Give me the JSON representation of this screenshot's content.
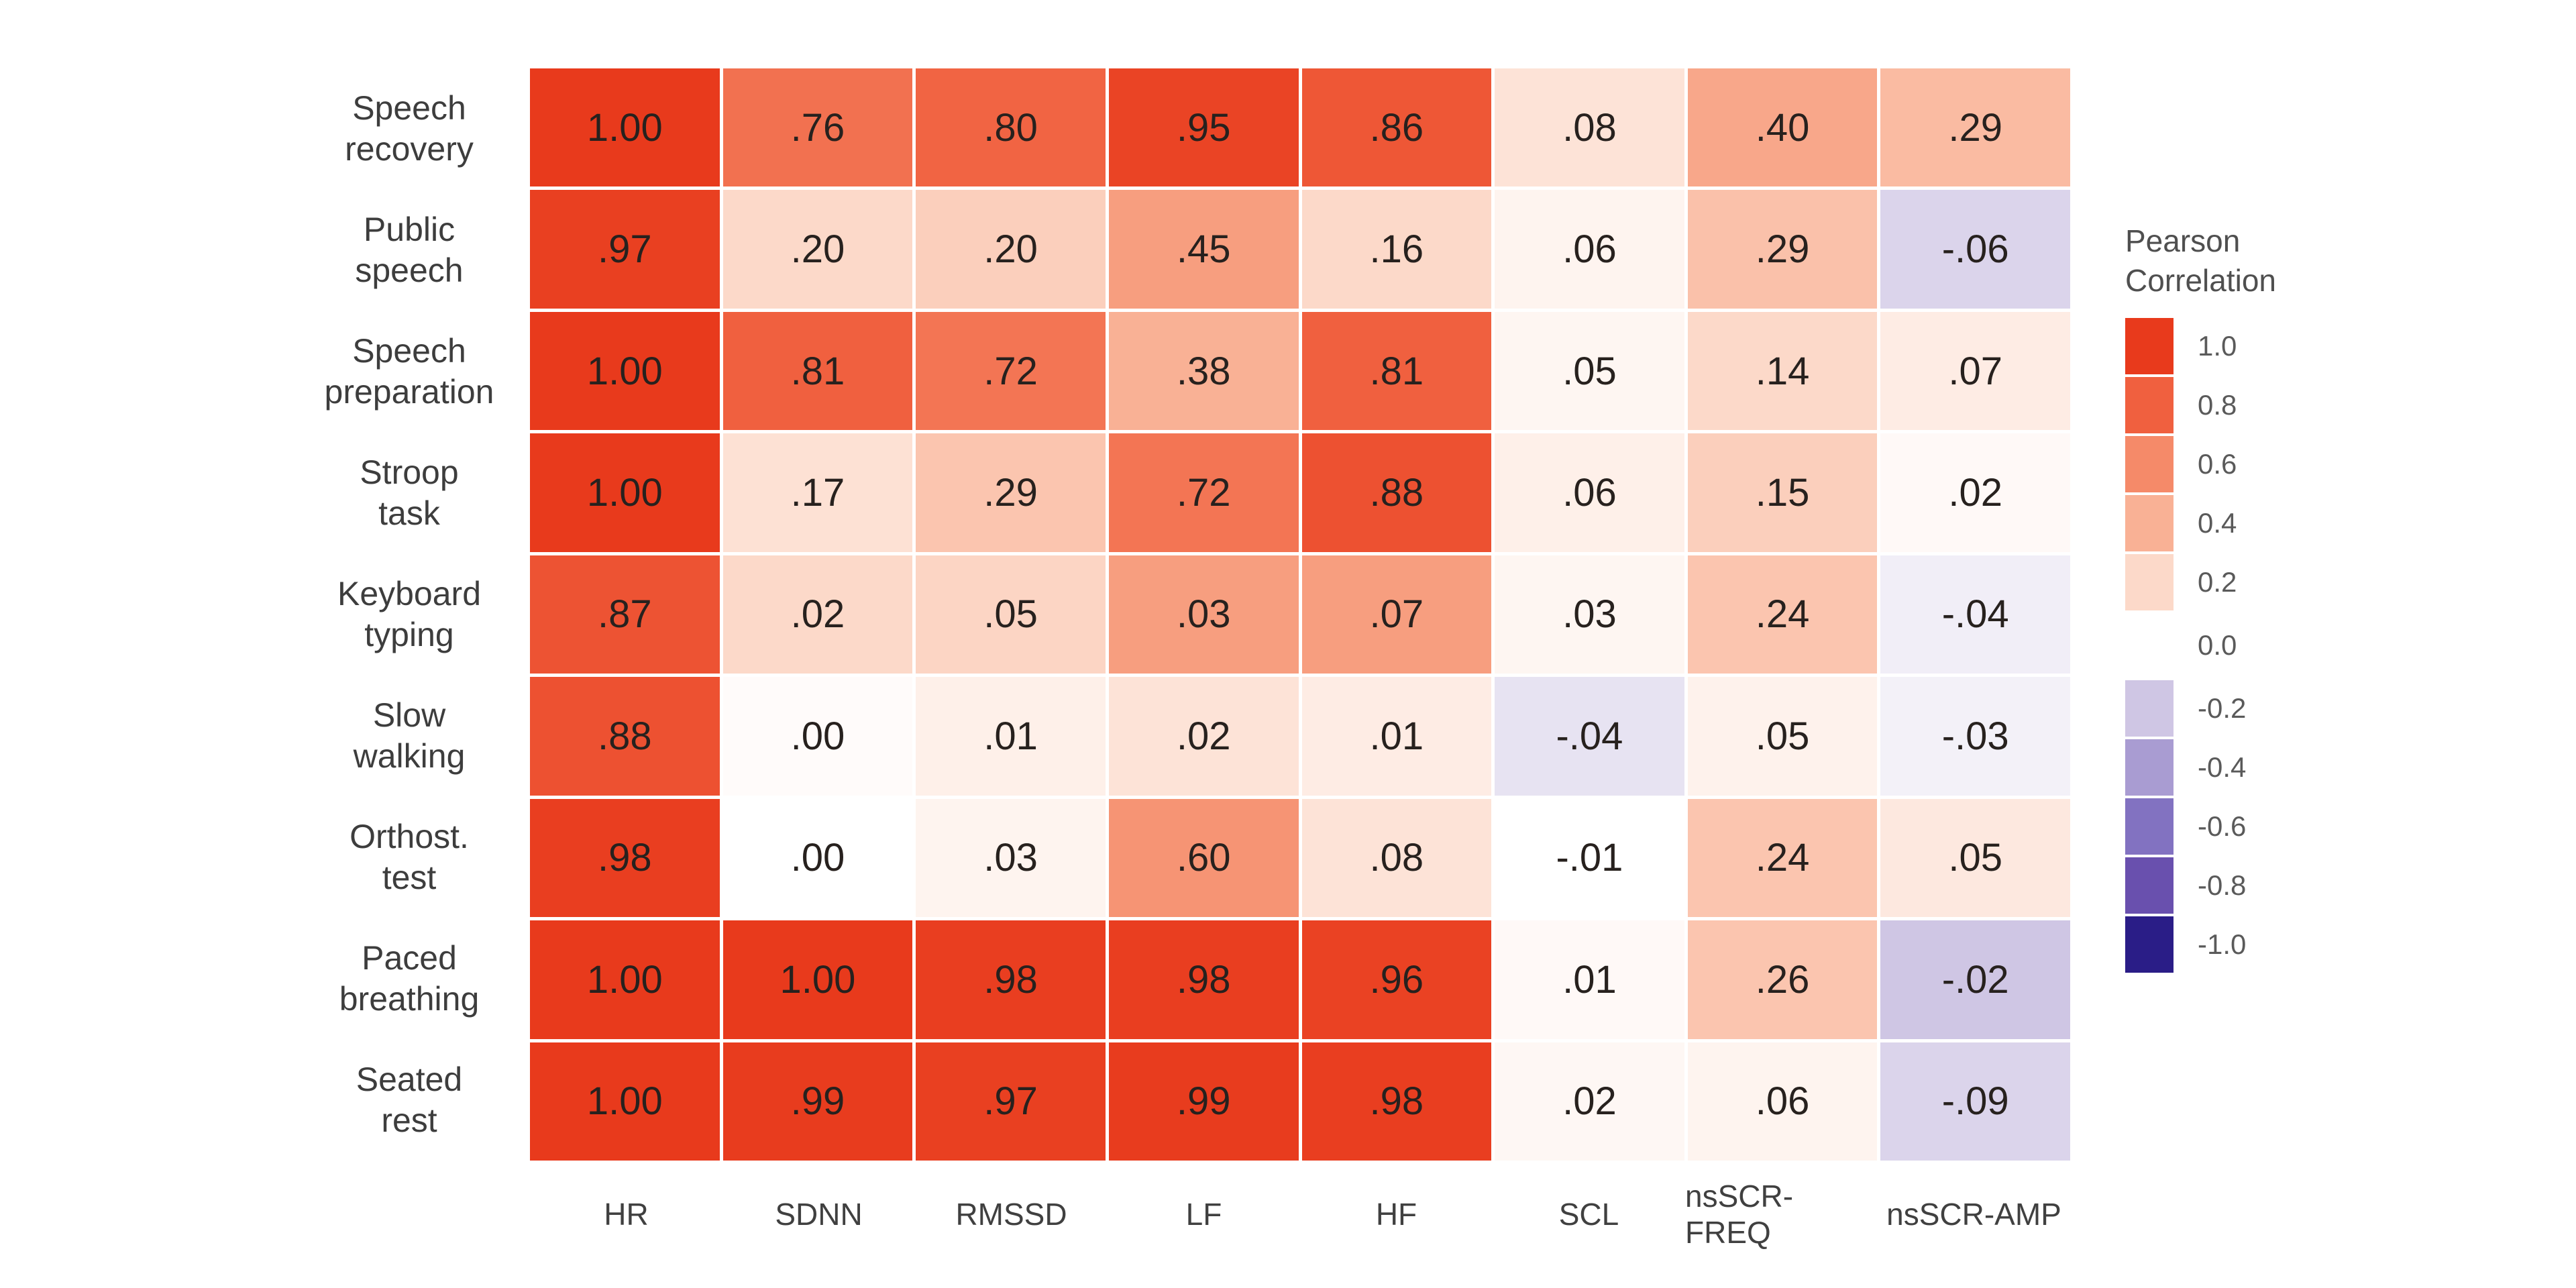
{
  "page": {
    "background": "#ffffff"
  },
  "chart_data": {
    "type": "heatmap",
    "title": "",
    "rows": [
      "Speech recovery",
      "Public speech",
      "Speech preparation",
      "Stroop task",
      "Keyboard typing",
      "Slow walking",
      "Orthost. test",
      "Paced breathing",
      "Seated rest"
    ],
    "row_label_lines": [
      [
        "Speech",
        "recovery"
      ],
      [
        "Public",
        "speech"
      ],
      [
        "Speech",
        "preparation"
      ],
      [
        "Stroop",
        "task"
      ],
      [
        "Keyboard",
        "typing"
      ],
      [
        "Slow",
        "walking"
      ],
      [
        "Orthost.",
        "test"
      ],
      [
        "Paced",
        "breathing"
      ],
      [
        "Seated",
        "rest"
      ]
    ],
    "columns": [
      "HR",
      "SDNN",
      "RMSSD",
      "LF",
      "HF",
      "SCL",
      "nsSCR-FREQ",
      "nsSCR-AMP"
    ],
    "values": [
      [
        "1.00",
        ".76",
        ".80",
        ".95",
        ".86",
        ".08",
        ".40",
        ".29"
      ],
      [
        ".97",
        ".20",
        ".20",
        ".45",
        ".16",
        ".06",
        ".29",
        "-.06"
      ],
      [
        "1.00",
        ".81",
        ".72",
        ".38",
        ".81",
        ".05",
        ".14",
        ".07"
      ],
      [
        "1.00",
        ".17",
        ".29",
        ".72",
        ".88",
        ".06",
        ".15",
        ".02"
      ],
      [
        ".87",
        ".02",
        ".05",
        ".03",
        ".07",
        ".03",
        ".24",
        "-.04"
      ],
      [
        ".88",
        ".00",
        ".01",
        ".02",
        ".01",
        "-.04",
        ".05",
        "-.03"
      ],
      [
        ".98",
        ".00",
        ".03",
        ".60",
        ".08",
        "-.01",
        ".24",
        ".05"
      ],
      [
        "1.00",
        "1.00",
        ".98",
        ".98",
        ".96",
        ".01",
        ".26",
        "-.02"
      ],
      [
        "1.00",
        ".99",
        ".97",
        ".99",
        ".98",
        ".02",
        ".06",
        "-.09"
      ]
    ],
    "values_numeric": [
      [
        1.0,
        0.76,
        0.8,
        0.95,
        0.86,
        0.08,
        0.4,
        0.29
      ],
      [
        0.97,
        0.2,
        0.2,
        0.45,
        0.16,
        0.06,
        0.29,
        -0.06
      ],
      [
        1.0,
        0.81,
        0.72,
        0.38,
        0.81,
        0.05,
        0.14,
        0.07
      ],
      [
        1.0,
        0.17,
        0.29,
        0.72,
        0.88,
        0.06,
        0.15,
        0.02
      ],
      [
        0.87,
        0.02,
        0.05,
        0.03,
        0.07,
        0.03,
        0.24,
        -0.04
      ],
      [
        0.88,
        0.0,
        0.01,
        0.02,
        0.01,
        -0.04,
        0.05,
        -0.03
      ],
      [
        0.98,
        0.0,
        0.03,
        0.6,
        0.08,
        -0.01,
        0.24,
        0.05
      ],
      [
        1.0,
        1.0,
        0.98,
        0.98,
        0.96,
        0.01,
        0.26,
        -0.02
      ],
      [
        1.0,
        0.99,
        0.97,
        0.99,
        0.98,
        0.02,
        0.06,
        -0.09
      ]
    ],
    "cell_shade_values": [
      [
        1.0,
        0.72,
        0.78,
        0.95,
        0.85,
        0.15,
        0.45,
        0.35
      ],
      [
        0.97,
        0.2,
        0.25,
        0.5,
        0.2,
        0.06,
        0.32,
        -0.15
      ],
      [
        1.0,
        0.8,
        0.7,
        0.4,
        0.8,
        0.05,
        0.2,
        0.1
      ],
      [
        1.0,
        0.16,
        0.3,
        0.7,
        0.88,
        0.08,
        0.25,
        0.03
      ],
      [
        0.87,
        0.2,
        0.22,
        0.5,
        0.5,
        0.05,
        0.3,
        -0.06
      ],
      [
        0.88,
        0.02,
        0.08,
        0.15,
        0.1,
        -0.1,
        0.07,
        -0.05
      ],
      [
        0.98,
        0.0,
        0.06,
        0.55,
        0.15,
        0.0,
        0.3,
        0.12
      ],
      [
        1.0,
        1.0,
        0.98,
        0.98,
        0.96,
        0.03,
        0.3,
        -0.2
      ],
      [
        1.0,
        0.99,
        0.97,
        0.99,
        0.98,
        0.04,
        0.06,
        -0.15
      ]
    ],
    "legend": {
      "title_lines": [
        "Pearson",
        "Correlation"
      ],
      "ticks": [
        "1.0",
        "0.8",
        "0.6",
        "0.4",
        "0.2",
        "0.0",
        "-0.2",
        "-0.4",
        "-0.6",
        "-0.8",
        "-1.0"
      ],
      "position": "right"
    },
    "colormap_anchors": [
      {
        "t": 1.0,
        "color": "#e83a1c"
      },
      {
        "t": 0.8,
        "color": "#f0603f"
      },
      {
        "t": 0.6,
        "color": "#f58a69"
      },
      {
        "t": 0.4,
        "color": "#f9b195"
      },
      {
        "t": 0.2,
        "color": "#fcd9c9"
      },
      {
        "t": 0.0,
        "color": "#ffffff"
      },
      {
        "t": -0.2,
        "color": "#cfc6e4"
      },
      {
        "t": -0.4,
        "color": "#a99cd2"
      },
      {
        "t": -0.6,
        "color": "#8272c1"
      },
      {
        "t": -0.8,
        "color": "#6950ae"
      },
      {
        "t": -1.0,
        "color": "#2a1d87"
      }
    ],
    "layout": {
      "grid_on": false,
      "value_range": [
        -1.0,
        1.0
      ]
    },
    "text_colors": {
      "cell_value": "#27211e",
      "axis_label": "#3d3d3d",
      "legend_text": "#5a5a5a"
    }
  }
}
